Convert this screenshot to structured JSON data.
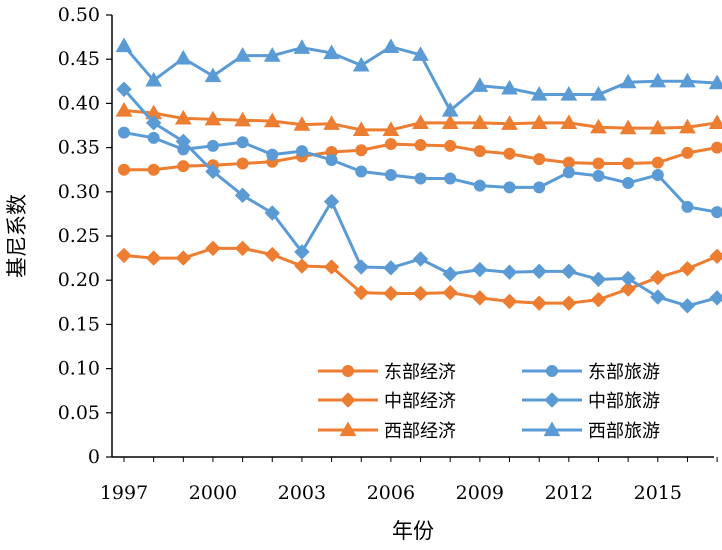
{
  "chart_data": {
    "type": "line",
    "xlabel": "年份",
    "ylabel": "基尼系数",
    "x": [
      1997,
      1998,
      1999,
      2000,
      2001,
      2002,
      2003,
      2004,
      2005,
      2006,
      2007,
      2008,
      2009,
      2010,
      2011,
      2012,
      2013,
      2014,
      2015,
      2016,
      2017
    ],
    "x_tick_labels": [
      "1997",
      "2000",
      "2003",
      "2006",
      "2009",
      "2012",
      "2015"
    ],
    "x_ticks": [
      1997,
      2000,
      2003,
      2006,
      2009,
      2012,
      2015
    ],
    "xlim": [
      1997,
      2017.3
    ],
    "ylim": [
      0,
      0.5
    ],
    "y_ticks": [
      0,
      0.05,
      0.1,
      0.15,
      0.2,
      0.25,
      0.3,
      0.35,
      0.4,
      0.45,
      0.5
    ],
    "y_tick_labels": [
      "0",
      "0.05",
      "0.10",
      "0.15",
      "0.20",
      "0.25",
      "0.30",
      "0.35",
      "0.40",
      "0.45",
      "0.50"
    ],
    "grid": false,
    "legend_position": "bottom-right",
    "series": [
      {
        "name": "东部经济",
        "color": "#ED7D31",
        "marker": "circle",
        "values": [
          0.325,
          0.325,
          0.329,
          0.33,
          0.332,
          0.334,
          0.34,
          0.345,
          0.347,
          0.354,
          0.353,
          0.352,
          0.346,
          0.343,
          0.337,
          0.333,
          0.332,
          0.332,
          0.333,
          0.344,
          0.35
        ]
      },
      {
        "name": "中部经济",
        "color": "#ED7D31",
        "marker": "diamond",
        "values": [
          0.228,
          0.225,
          0.225,
          0.236,
          0.236,
          0.229,
          0.216,
          0.215,
          0.186,
          0.185,
          0.185,
          0.186,
          0.18,
          0.176,
          0.174,
          0.174,
          0.178,
          0.19,
          0.203,
          0.213,
          0.227
        ]
      },
      {
        "name": "西部经济",
        "color": "#ED7D31",
        "marker": "triangle",
        "values": [
          0.392,
          0.389,
          0.383,
          0.382,
          0.381,
          0.38,
          0.376,
          0.377,
          0.37,
          0.37,
          0.378,
          0.378,
          0.378,
          0.377,
          0.378,
          0.378,
          0.373,
          0.372,
          0.372,
          0.373,
          0.378
        ]
      },
      {
        "name": "东部旅游",
        "color": "#5B9BD5",
        "marker": "circle",
        "values": [
          0.367,
          0.361,
          0.348,
          0.352,
          0.356,
          0.342,
          0.346,
          0.336,
          0.323,
          0.319,
          0.315,
          0.315,
          0.307,
          0.305,
          0.305,
          0.322,
          0.318,
          0.31,
          0.319,
          0.283,
          0.277
        ]
      },
      {
        "name": "中部旅游",
        "color": "#5B9BD5",
        "marker": "diamond",
        "values": [
          0.416,
          0.378,
          0.357,
          0.323,
          0.296,
          0.276,
          0.232,
          0.289,
          0.215,
          0.214,
          0.224,
          0.207,
          0.212,
          0.209,
          0.21,
          0.21,
          0.201,
          0.202,
          0.181,
          0.171,
          0.18
        ]
      },
      {
        "name": "西部旅游",
        "color": "#5B9BD5",
        "marker": "triangle",
        "values": [
          0.465,
          0.426,
          0.451,
          0.431,
          0.454,
          0.454,
          0.463,
          0.457,
          0.443,
          0.464,
          0.455,
          0.392,
          0.42,
          0.417,
          0.41,
          0.41,
          0.41,
          0.424,
          0.425,
          0.425,
          0.423
        ]
      }
    ]
  }
}
